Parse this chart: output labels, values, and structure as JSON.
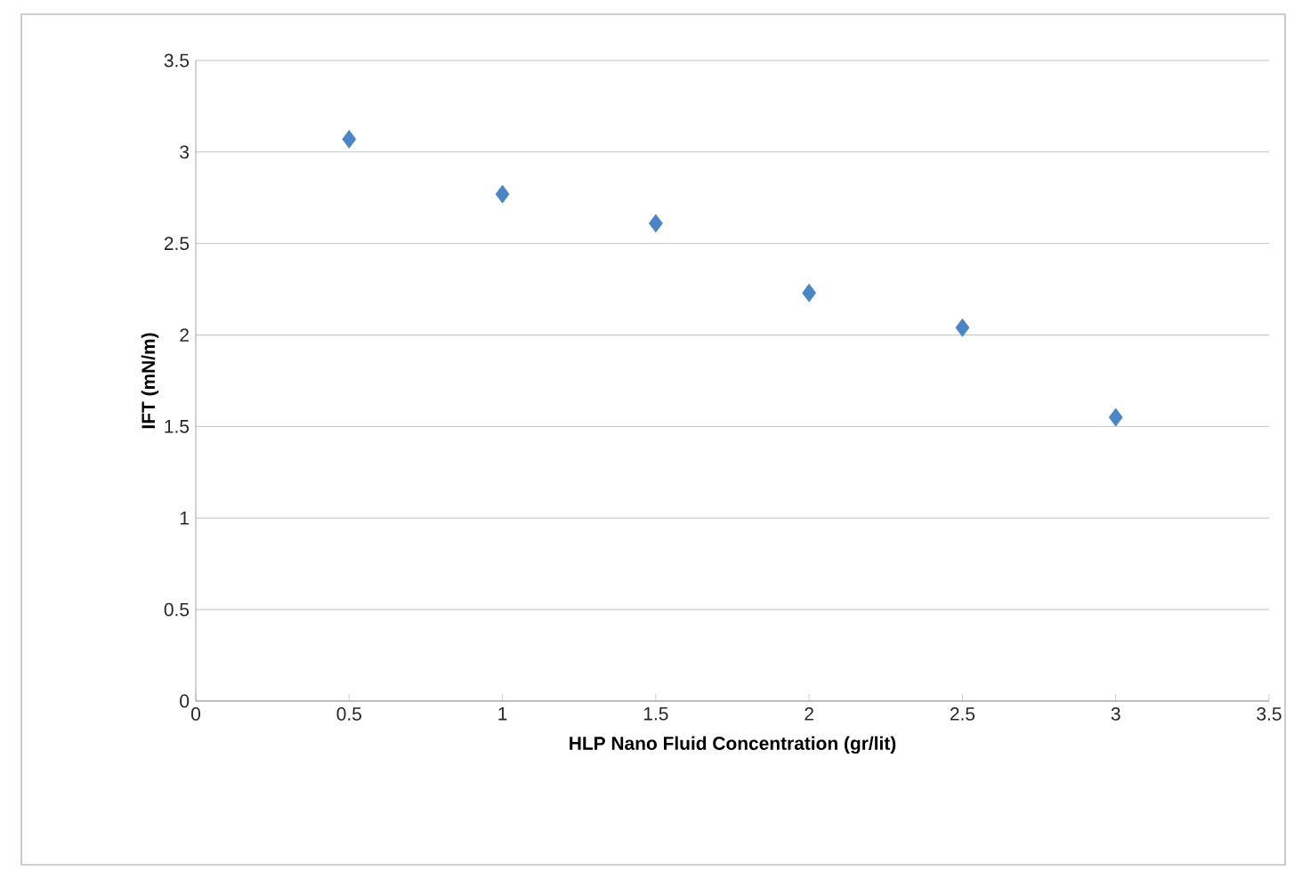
{
  "chart_data": {
    "type": "scatter",
    "xlabel": "HLP Nano Fluid Concentration (gr/lit)",
    "ylabel": "IFT (mN/m)",
    "x": [
      0.5,
      1,
      1.5,
      2,
      2.5,
      3
    ],
    "series": [
      {
        "color": "#4a86c5",
        "values": [
          3.07,
          2.77,
          2.61,
          2.23,
          2.04,
          1.55
        ]
      }
    ],
    "marker": "diamond",
    "xlim": [
      0,
      3.5
    ],
    "xticks": [
      0,
      0.5,
      1,
      1.5,
      2,
      2.5,
      3,
      3.5
    ],
    "ylim": [
      0,
      3.5
    ],
    "yticks": [
      0,
      0.5,
      1,
      1.5,
      2,
      2.5,
      3,
      3.5
    ],
    "grid": "y",
    "legend": false
  }
}
